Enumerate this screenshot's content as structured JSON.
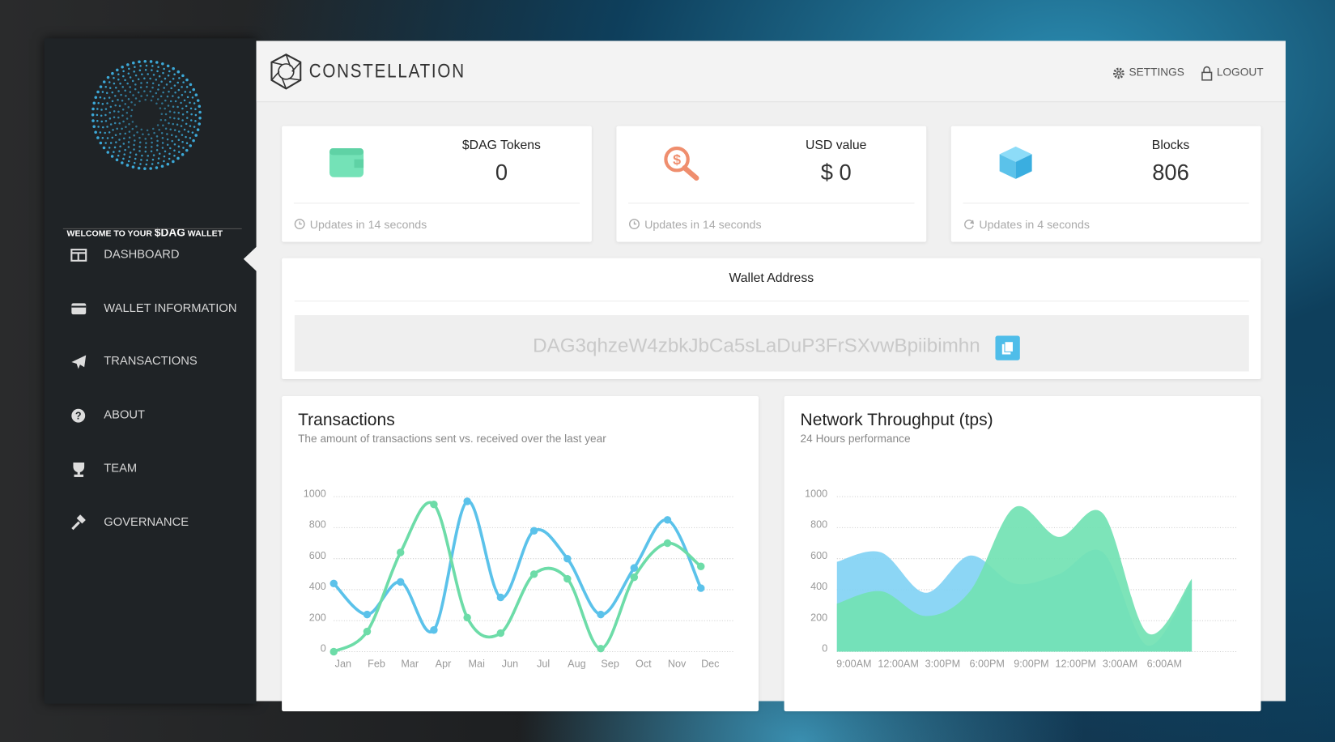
{
  "sidebar": {
    "welcome": [
      "WELCOME TO YOUR",
      "$DAG",
      "WALLET"
    ],
    "nav": [
      "DASHBOARD",
      "WALLET INFORMATION",
      "TRANSACTIONS",
      "ABOUT",
      "TEAM",
      "GOVERNANCE"
    ]
  },
  "header": {
    "brand": "CONSTELLATION",
    "settings": "SETTINGS",
    "logout": "LOGOUT"
  },
  "cards": [
    {
      "label": "$DAG Tokens",
      "value": "0",
      "footer": "Updates in 14 seconds"
    },
    {
      "label": "USD value",
      "value": "$ 0",
      "footer": "Updates in 14 seconds"
    },
    {
      "label": "Blocks",
      "value": "806",
      "footer": "Updates in 4 seconds"
    }
  ],
  "wallet": {
    "title": "Wallet Address",
    "address": "DAG3qhzeW4zbkJbCa5sLaDuP3FrSXvwBpiibimhn"
  },
  "chart_data": [
    {
      "type": "line",
      "title": "Transactions",
      "subtitle": "The amount of transactions sent vs. received over the last year",
      "categories": [
        "Jan",
        "Feb",
        "Mar",
        "Apr",
        "Mai",
        "Jun",
        "Jul",
        "Aug",
        "Sep",
        "Oct",
        "Nov",
        "Dec"
      ],
      "series": [
        {
          "color": "#5bc2ea",
          "values": [
            440,
            240,
            450,
            140,
            970,
            350,
            780,
            600,
            240,
            540,
            850,
            410
          ]
        },
        {
          "color": "#6ddca8",
          "values": [
            0,
            130,
            640,
            950,
            220,
            120,
            500,
            470,
            20,
            480,
            700,
            550
          ]
        }
      ],
      "ylim": [
        0,
        1000
      ],
      "yticks": [
        0,
        200,
        400,
        600,
        800,
        1000
      ],
      "grid": true
    },
    {
      "type": "area",
      "title": "Network Throughput (tps)",
      "subtitle": "24 Hours performance",
      "categories": [
        "9:00AM",
        "12:00AM",
        "3:00PM",
        "6:00PM",
        "9:00PM",
        "12:00PM",
        "3:00AM",
        "6:00AM",
        null
      ],
      "series": [
        {
          "color": "#82d3f4",
          "values": [
            580,
            640,
            380,
            620,
            440,
            500,
            640,
            40,
            460
          ]
        },
        {
          "color": "#72e2b3",
          "values": [
            310,
            390,
            230,
            390,
            930,
            740,
            890,
            120,
            470
          ]
        }
      ],
      "ylim": [
        0,
        1000
      ],
      "yticks": [
        0,
        200,
        400,
        600,
        800,
        1000
      ],
      "grid": true
    }
  ]
}
